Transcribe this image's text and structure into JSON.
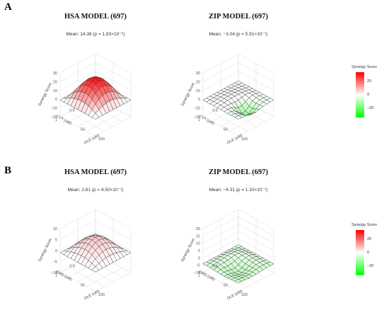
{
  "panels": [
    {
      "label": "A",
      "legend": {
        "title": "Synergy Score",
        "ticks": [
          "20",
          "0",
          "−20"
        ],
        "colors": [
          "#ff0000",
          "#ffffff",
          "#00ff00"
        ]
      },
      "plots": [
        {
          "title": "HSA MODEL (697)",
          "mean": "Mean: 14.38 (p = 1.83×10⁻⁶)"
        },
        {
          "title": "ZIP MODEL (697)",
          "mean": "Mean: −3.04 (p = 5.51×10⁻¹)"
        }
      ]
    },
    {
      "label": "B",
      "legend": {
        "title": "Synergy Score",
        "ticks": [
          "20",
          "0",
          "−20"
        ],
        "colors": [
          "#ff0000",
          "#ffffff",
          "#00ff00"
        ]
      },
      "plots": [
        {
          "title": "HSA MODEL (697)",
          "mean": "Mean: 2.61 (p = 4.50×10⁻¹)"
        },
        {
          "title": "ZIP MODEL (697)",
          "mean": "Mean: −4.31 (p = 1.10×10⁻¹)"
        }
      ]
    }
  ],
  "chart_data": [
    {
      "type": "surface",
      "title": "HSA MODEL (697)",
      "subtitle": "Mean: 14.38 (p = 1.83×10⁻⁶)",
      "xlabel": "OLE (uM)",
      "ylabel": "CYT (uM)",
      "zlabel": "Synergy Score",
      "x_ticks": [
        "50",
        "100"
      ],
      "y_ticks": [
        "0.5",
        "1"
      ],
      "z_ticks": [
        "30",
        "20",
        "10",
        "0",
        "-10",
        "-20"
      ],
      "zlim": [
        -20,
        30
      ],
      "peak": 24,
      "base": -1,
      "dip": 0,
      "dip_x": 0.7,
      "dip_y": 0.7,
      "dip_w": 0.15
    },
    {
      "type": "surface",
      "title": "ZIP MODEL (697)",
      "subtitle": "Mean: −3.04 (p = 5.51×10⁻¹)",
      "xlabel": "OLE (uM)",
      "ylabel": "CYT (uM)",
      "zlabel": "Synergy Score",
      "x_ticks": [
        "50",
        "100"
      ],
      "y_ticks": [
        "0.5",
        "1"
      ],
      "z_ticks": [
        "30",
        "20",
        "10",
        "0",
        "-10",
        "-20"
      ],
      "zlim": [
        -20,
        30
      ],
      "peak": 2,
      "base": -1,
      "dip": -12,
      "dip_x": 0.75,
      "dip_y": 0.55,
      "dip_w": 0.15
    },
    {
      "type": "surface",
      "title": "HSA MODEL (697)",
      "subtitle": "Mean: 2.61 (p = 4.50×10⁻¹)",
      "xlabel": "OLE (uM)",
      "ylabel": "EMD (uM)",
      "zlabel": "Synergy Score",
      "x_ticks": [
        "50",
        "100"
      ],
      "y_ticks": [
        "0.5",
        "1"
      ],
      "z_ticks": [
        "10",
        "5",
        "0",
        "-5",
        "-10"
      ],
      "zlim": [
        -10,
        10
      ],
      "peak": 6,
      "base": -1,
      "dip": 0,
      "dip_x": 0.7,
      "dip_y": 0.7,
      "dip_w": 0.15
    },
    {
      "type": "surface",
      "title": "ZIP MODEL (697)",
      "subtitle": "Mean: −4.31 (p = 1.10×10⁻¹)",
      "xlabel": "OLE (uM)",
      "ylabel": "EMD (uM)",
      "zlabel": "Synergy Score",
      "x_ticks": [
        "50",
        "100"
      ],
      "y_ticks": [
        "0.5",
        "1"
      ],
      "z_ticks": [
        "20",
        "15",
        "10",
        "5",
        "0",
        "-5",
        "-10"
      ],
      "zlim": [
        -10,
        20
      ],
      "peak": 0,
      "base": -4,
      "dip": -6,
      "dip_x": 0.6,
      "dip_y": 0.6,
      "dip_w": 0.2
    }
  ]
}
